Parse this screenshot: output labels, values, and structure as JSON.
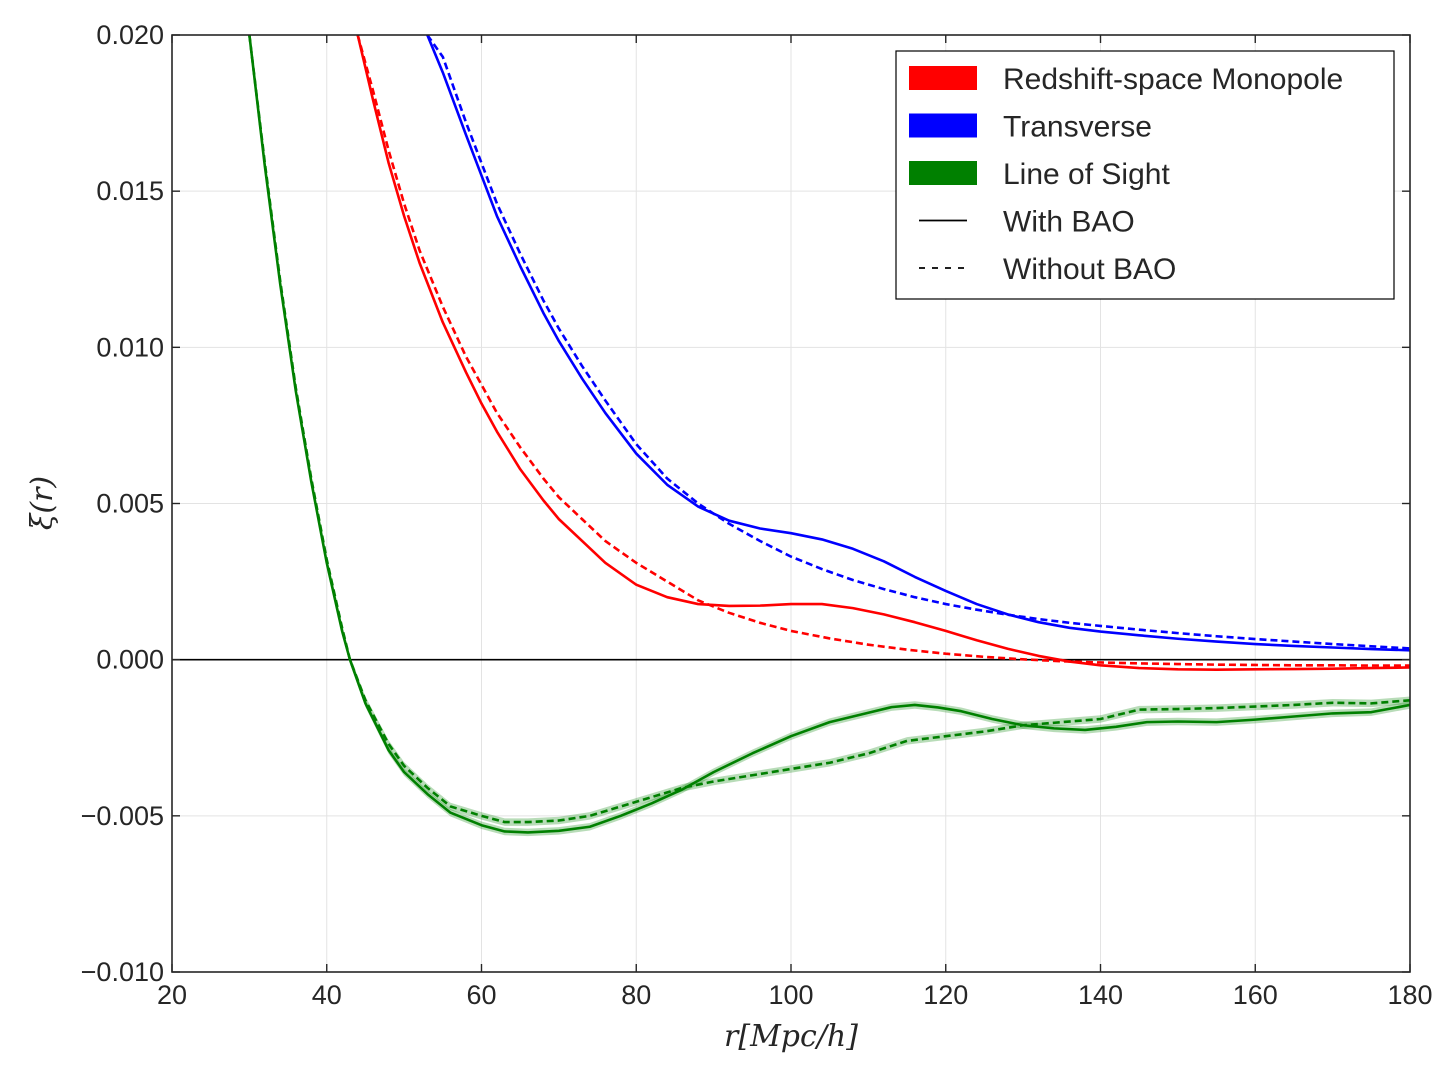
{
  "chart_data": {
    "type": "line",
    "title": "",
    "xlabel": "r[Mpc/h]",
    "ylabel": "ξ(r)",
    "xlim": [
      20,
      180
    ],
    "ylim": [
      -0.01,
      0.02
    ],
    "xticks": [
      20,
      40,
      60,
      80,
      100,
      120,
      140,
      160,
      180
    ],
    "yticks": [
      -0.01,
      -0.005,
      0.0,
      0.005,
      0.01,
      0.015,
      0.02
    ],
    "ytick_labels": [
      "−0.010",
      "−0.005",
      "0.000",
      "0.005",
      "0.010",
      "0.015",
      "0.020"
    ],
    "grid": true,
    "zero_line": true,
    "legend_position": "upper-right",
    "legend": [
      {
        "label": "Redshift-space Monopole",
        "kind": "patch",
        "color": "#ff0000"
      },
      {
        "label": "Transverse",
        "kind": "patch",
        "color": "#0000ff"
      },
      {
        "label": "Line of Sight",
        "kind": "patch",
        "color": "#008000"
      },
      {
        "label": "With BAO",
        "kind": "solid-line",
        "color": "#000000"
      },
      {
        "label": "Without BAO",
        "kind": "dashed-line",
        "color": "#000000"
      }
    ],
    "series": [
      {
        "component": "Redshift-space Monopole",
        "bao": "with",
        "color": "#ff0000",
        "dash": false,
        "band": false,
        "x": [
          44,
          46,
          48,
          50,
          52,
          55,
          58,
          60,
          62,
          65,
          68,
          70,
          73,
          76,
          80,
          84,
          88,
          92,
          96,
          100,
          104,
          108,
          112,
          116,
          120,
          124,
          128,
          132,
          136,
          140,
          145,
          150,
          155,
          160,
          165,
          170,
          175,
          180
        ],
        "y": [
          0.02,
          0.0179,
          0.0159,
          0.0142,
          0.0127,
          0.0108,
          0.0092,
          0.0082,
          0.0073,
          0.0061,
          0.0051,
          0.0045,
          0.0038,
          0.0031,
          0.0024,
          0.002,
          0.00178,
          0.00172,
          0.00173,
          0.00178,
          0.00178,
          0.00165,
          0.00145,
          0.0012,
          0.00092,
          0.00062,
          0.00035,
          0.00012,
          -6e-05,
          -0.00018,
          -0.00027,
          -0.00031,
          -0.00032,
          -0.00031,
          -0.0003,
          -0.00029,
          -0.00027,
          -0.00025
        ]
      },
      {
        "component": "Redshift-space Monopole",
        "bao": "without",
        "color": "#ff0000",
        "dash": true,
        "band": false,
        "x": [
          44,
          46,
          48,
          50,
          52,
          55,
          58,
          60,
          62,
          65,
          68,
          70,
          73,
          76,
          80,
          84,
          88,
          92,
          96,
          100,
          105,
          110,
          115,
          120,
          125,
          130,
          135,
          140,
          145,
          150,
          155,
          160,
          165,
          170,
          175,
          180
        ],
        "y": [
          0.02,
          0.0182,
          0.0163,
          0.0146,
          0.0131,
          0.0113,
          0.0097,
          0.0088,
          0.0079,
          0.0068,
          0.0058,
          0.0052,
          0.0045,
          0.0038,
          0.0031,
          0.0025,
          0.0019,
          0.0015,
          0.00118,
          0.00092,
          0.00068,
          0.00048,
          0.00032,
          0.00019,
          9e-05,
          1e-05,
          -5e-05,
          -9e-05,
          -0.00012,
          -0.00014,
          -0.00016,
          -0.00017,
          -0.00018,
          -0.00018,
          -0.00019,
          -0.00019
        ]
      },
      {
        "component": "Transverse",
        "bao": "with",
        "color": "#0000ff",
        "dash": false,
        "band": false,
        "x": [
          53,
          55,
          58,
          60,
          62,
          65,
          68,
          70,
          73,
          76,
          80,
          84,
          88,
          92,
          96,
          100,
          104,
          108,
          112,
          116,
          120,
          124,
          128,
          132,
          136,
          140,
          145,
          150,
          155,
          160,
          165,
          170,
          175,
          180
        ],
        "y": [
          0.02,
          0.0188,
          0.0168,
          0.0155,
          0.0142,
          0.0126,
          0.0111,
          0.0102,
          0.009,
          0.0079,
          0.0066,
          0.0056,
          0.0049,
          0.00445,
          0.0042,
          0.00405,
          0.00385,
          0.00355,
          0.00315,
          0.00265,
          0.0022,
          0.00178,
          0.00145,
          0.0012,
          0.00102,
          0.0009,
          0.00078,
          0.00067,
          0.00058,
          0.0005,
          0.00044,
          0.00039,
          0.00034,
          0.0003
        ]
      },
      {
        "component": "Transverse",
        "bao": "without",
        "color": "#0000ff",
        "dash": true,
        "band": false,
        "x": [
          53,
          55,
          58,
          60,
          62,
          65,
          68,
          70,
          73,
          76,
          80,
          84,
          88,
          92,
          96,
          100,
          104,
          108,
          112,
          116,
          120,
          124,
          128,
          132,
          136,
          140,
          145,
          150,
          155,
          160,
          165,
          170,
          175,
          180
        ],
        "y": [
          0.02,
          0.0193,
          0.0172,
          0.0159,
          0.0146,
          0.013,
          0.0115,
          0.0106,
          0.0094,
          0.0083,
          0.0069,
          0.0058,
          0.005,
          0.00435,
          0.0038,
          0.0033,
          0.0029,
          0.00255,
          0.00226,
          0.002,
          0.00178,
          0.0016,
          0.00144,
          0.0013,
          0.00118,
          0.00108,
          0.00096,
          0.00085,
          0.00075,
          0.00066,
          0.00058,
          0.0005,
          0.00043,
          0.00036
        ]
      },
      {
        "component": "Line of Sight",
        "bao": "with",
        "color": "#008000",
        "dash": false,
        "band": true,
        "x": [
          30,
          32,
          34,
          36,
          38,
          40,
          42,
          43,
          45,
          48,
          50,
          53,
          56,
          60,
          63,
          66,
          70,
          74,
          78,
          82,
          86,
          90,
          95,
          100,
          105,
          110,
          113,
          116,
          119,
          122,
          126,
          130,
          134,
          138,
          142,
          146,
          150,
          155,
          160,
          165,
          170,
          175,
          180
        ],
        "y": [
          0.02,
          0.0158,
          0.012,
          0.0086,
          0.0057,
          0.0031,
          0.0009,
          0.0,
          -0.0014,
          -0.0029,
          -0.0036,
          -0.0043,
          -0.0049,
          -0.0053,
          -0.0055,
          -0.00553,
          -0.00548,
          -0.00535,
          -0.005,
          -0.0046,
          -0.00415,
          -0.0036,
          -0.003,
          -0.00245,
          -0.002,
          -0.0017,
          -0.00152,
          -0.00145,
          -0.00153,
          -0.00165,
          -0.0019,
          -0.0021,
          -0.0022,
          -0.00225,
          -0.00215,
          -0.002,
          -0.00198,
          -0.002,
          -0.00192,
          -0.00182,
          -0.00172,
          -0.00168,
          -0.00145
        ]
      },
      {
        "component": "Line of Sight",
        "bao": "without",
        "color": "#008000",
        "dash": true,
        "band": true,
        "x": [
          30,
          32,
          34,
          36,
          38,
          40,
          42,
          43,
          45,
          48,
          50,
          53,
          56,
          60,
          63,
          66,
          70,
          74,
          78,
          82,
          86,
          90,
          95,
          100,
          105,
          110,
          115,
          120,
          125,
          130,
          135,
          140,
          145,
          150,
          155,
          160,
          165,
          170,
          175,
          180
        ],
        "y": [
          0.02,
          0.0159,
          0.0121,
          0.0087,
          0.0058,
          0.0032,
          0.001,
          0.0,
          -0.0013,
          -0.0027,
          -0.0034,
          -0.0041,
          -0.0047,
          -0.005,
          -0.0052,
          -0.0052,
          -0.00515,
          -0.005,
          -0.0047,
          -0.0044,
          -0.0041,
          -0.0039,
          -0.0037,
          -0.0035,
          -0.0033,
          -0.003,
          -0.0026,
          -0.00245,
          -0.0023,
          -0.0021,
          -0.002,
          -0.0019,
          -0.0016,
          -0.00158,
          -0.00155,
          -0.0015,
          -0.00145,
          -0.00138,
          -0.0014,
          -0.0013
        ]
      }
    ]
  }
}
